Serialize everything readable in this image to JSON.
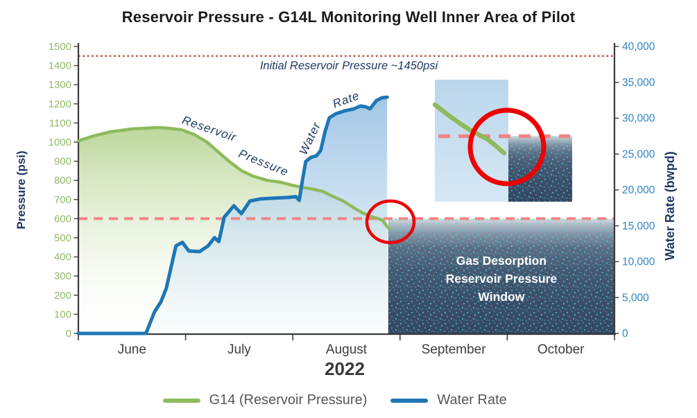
{
  "title": "Reservoir Pressure - G14L Monitoring Well Inner Area of Pilot",
  "x_axis": {
    "month_labels": [
      "June",
      "July",
      "August",
      "September",
      "October"
    ],
    "year_label": "2022"
  },
  "left_axis": {
    "title": "Pressure (psi)",
    "tick_labels": [
      "0",
      "100",
      "200",
      "300",
      "400",
      "500",
      "600",
      "700",
      "800",
      "900",
      "1000",
      "1100",
      "1200",
      "1300",
      "1400",
      "1500"
    ],
    "min": 0,
    "max": 1500
  },
  "right_axis": {
    "title": "Water Rate (bwpd)",
    "tick_labels": [
      "0",
      "5,000",
      "10,000",
      "15,000",
      "20,000",
      "25,000",
      "30,000",
      "35,000",
      "40,000"
    ],
    "min": 0,
    "max": 40000
  },
  "annotations": {
    "initial_pressure_label": "Initial Reservoir Pressure  ~1450psi",
    "reservoir_label": "Reservoir",
    "pressure_label": "Pressure",
    "water_label": "Water",
    "rate_label": "Rate"
  },
  "window": {
    "label_lines": [
      "Gas Desorption",
      "Reservoir Pressure",
      "Window"
    ],
    "below_psi": 600,
    "starts_at_month_offset": 2.89
  },
  "legend": {
    "items": [
      {
        "label": "G14 (Reservoir Pressure)",
        "color": "#8FBA5C"
      },
      {
        "label": "Water Rate",
        "color": "#1E76B5"
      }
    ]
  },
  "colors": {
    "green_line": "#8FBA5C",
    "blue_line": "#1E76B5",
    "dotted_line": "#C0504D",
    "dashed_line": "#F08585",
    "navy_text": "#1F3864",
    "left_tick_text": "#92B964",
    "right_tick_text": "#2E86C8",
    "month_text": "#3C3C3C",
    "axis_line": "#3a3a3a",
    "circle_red": "#EC0000",
    "window_text": "#FFFFFF",
    "speckle_cyan": "#55CFE2"
  },
  "chart_data": {
    "type": "line",
    "title": "Reservoir Pressure - G14L Monitoring Well Inner Area of Pilot",
    "x_unit": "months since June 1, 2022",
    "xlim": [
      0,
      5
    ],
    "left_ylim": [
      0,
      1500
    ],
    "right_ylim": [
      0,
      40000
    ],
    "grid": false,
    "legend_position": "bottom",
    "reference_lines": [
      {
        "name": "Initial Reservoir Pressure",
        "axis": "left",
        "value": 1450,
        "style": "dotted"
      },
      {
        "name": "Gas desorption threshold",
        "axis": "left",
        "value": 600,
        "style": "dashed"
      }
    ],
    "series": [
      {
        "name": "G14 (Reservoir Pressure)",
        "axis": "left",
        "unit": "psi",
        "points": [
          [
            0.0,
            1007
          ],
          [
            0.14,
            1032
          ],
          [
            0.3,
            1054
          ],
          [
            0.5,
            1069
          ],
          [
            0.66,
            1074
          ],
          [
            0.75,
            1076
          ],
          [
            0.85,
            1072
          ],
          [
            0.96,
            1065
          ],
          [
            1.08,
            1040
          ],
          [
            1.2,
            1000
          ],
          [
            1.31,
            946
          ],
          [
            1.4,
            902
          ],
          [
            1.52,
            851
          ],
          [
            1.63,
            822
          ],
          [
            1.76,
            800
          ],
          [
            1.89,
            790
          ],
          [
            1.99,
            775
          ],
          [
            2.08,
            764
          ],
          [
            2.18,
            755
          ],
          [
            2.28,
            742
          ],
          [
            2.37,
            717
          ],
          [
            2.47,
            692
          ],
          [
            2.57,
            656
          ],
          [
            2.65,
            630
          ],
          [
            2.74,
            609
          ],
          [
            2.81,
            598
          ],
          [
            2.84,
            590
          ],
          [
            2.87,
            565
          ],
          [
            2.9,
            547
          ]
        ]
      },
      {
        "name": "Water Rate",
        "axis": "right",
        "unit": "bwpd",
        "points": [
          [
            0.0,
            0
          ],
          [
            0.63,
            0
          ],
          [
            0.71,
            3000
          ],
          [
            0.77,
            4400
          ],
          [
            0.82,
            6300
          ],
          [
            0.91,
            12200
          ],
          [
            0.97,
            12700
          ],
          [
            1.03,
            11500
          ],
          [
            1.13,
            11400
          ],
          [
            1.21,
            12200
          ],
          [
            1.27,
            13350
          ],
          [
            1.31,
            12800
          ],
          [
            1.36,
            16200
          ],
          [
            1.45,
            17800
          ],
          [
            1.52,
            16700
          ],
          [
            1.6,
            18450
          ],
          [
            1.7,
            18750
          ],
          [
            1.82,
            18850
          ],
          [
            1.95,
            18950
          ],
          [
            2.03,
            19050
          ],
          [
            2.06,
            18550
          ],
          [
            2.09,
            21350
          ],
          [
            2.12,
            23950
          ],
          [
            2.17,
            24550
          ],
          [
            2.22,
            24750
          ],
          [
            2.26,
            25500
          ],
          [
            2.3,
            28100
          ],
          [
            2.34,
            30050
          ],
          [
            2.4,
            30600
          ],
          [
            2.48,
            31000
          ],
          [
            2.57,
            31300
          ],
          [
            2.63,
            31700
          ],
          [
            2.68,
            31580
          ],
          [
            2.72,
            31300
          ],
          [
            2.78,
            32450
          ],
          [
            2.83,
            32840
          ],
          [
            2.88,
            32930
          ]
        ]
      }
    ]
  }
}
